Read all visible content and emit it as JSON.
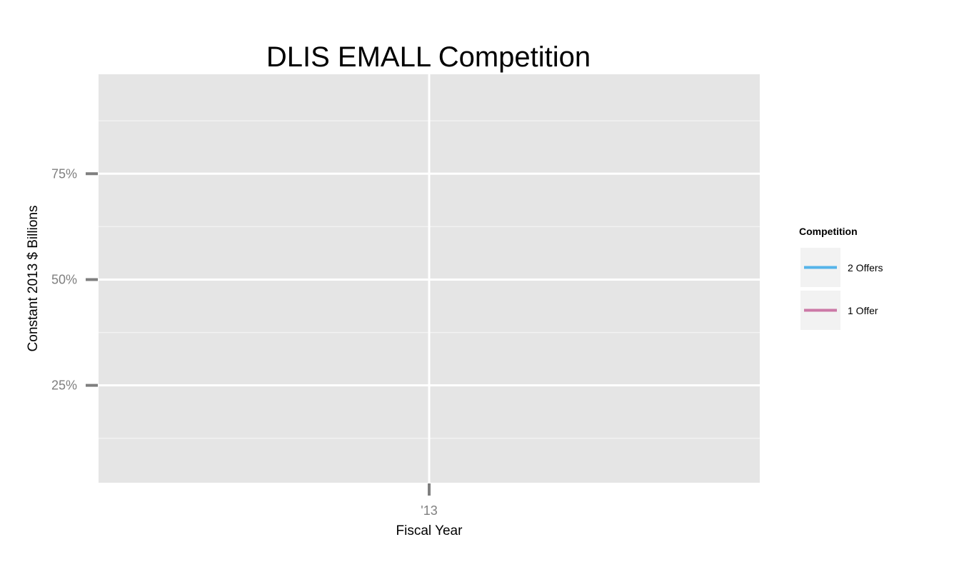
{
  "chart_data": {
    "type": "line",
    "title": "DLIS EMALL Competition",
    "xlabel": "Fiscal Year",
    "ylabel": "Constant 2013 $ Billions",
    "x_categories": [
      "'13"
    ],
    "y_ticks": [
      {
        "value": 0.25,
        "label": "25%"
      },
      {
        "value": 0.5,
        "label": "50%"
      },
      {
        "value": 0.75,
        "label": "75%"
      }
    ],
    "ylim": [
      0.02,
      0.985
    ],
    "grid": true,
    "legend": {
      "title": "Competition",
      "position": "right"
    },
    "series": [
      {
        "name": "2 Offers",
        "color": "#56B4E9",
        "values": []
      },
      {
        "name": "1 Offer",
        "color": "#CC79A7",
        "values": []
      }
    ]
  },
  "colors": {
    "panel_background": "#e5e5e5",
    "grid_major": "#ffffff",
    "grid_minor": "#f2f2f2",
    "legend_key_background": "#f2f2f2",
    "tick_color": "#7f7f7f"
  }
}
